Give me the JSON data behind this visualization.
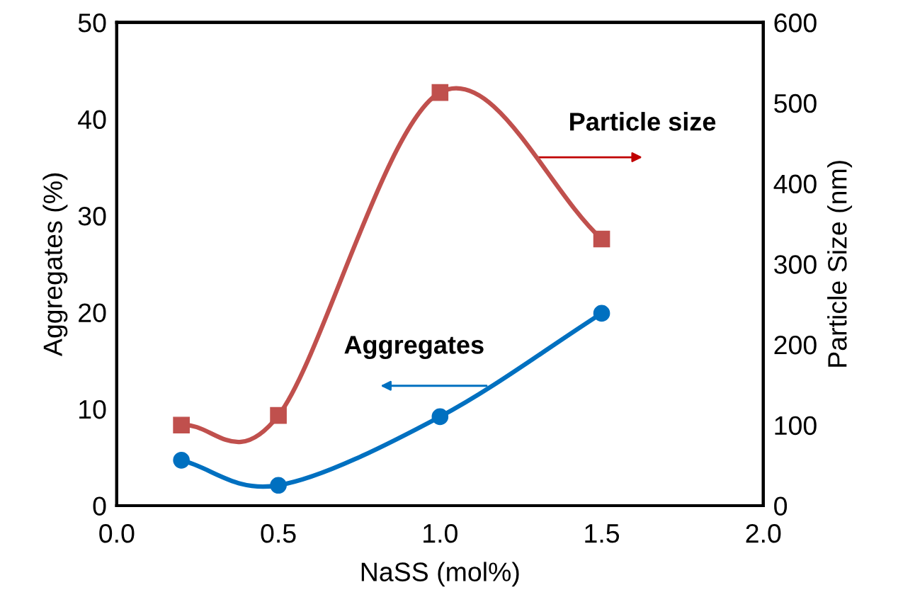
{
  "chart_data": {
    "type": "line",
    "xlabel": "NaSS (mol%)",
    "ylabel": "Aggregates (%)",
    "y2label": "Particle Size (nm)",
    "x": [
      0.2,
      0.5,
      1.0,
      1.5
    ],
    "xlim": [
      0.0,
      2.0
    ],
    "xticks": [
      {
        "value": 0,
        "label": "0.0"
      },
      {
        "value": 0.5,
        "label": "0.5"
      },
      {
        "value": 1,
        "label": "1.0"
      },
      {
        "value": 1.5,
        "label": "1.5"
      },
      {
        "value": 2,
        "label": "2.0"
      }
    ],
    "ylim": [
      0,
      50
    ],
    "yticks": [
      0,
      10,
      20,
      30,
      40,
      50
    ],
    "y2lim": [
      0,
      600
    ],
    "y2ticks": [
      0,
      100,
      200,
      300,
      400,
      500,
      600
    ],
    "grid": false,
    "line_style": "solid",
    "series": [
      {
        "name": "Aggregates",
        "color": "#0070c0",
        "marker": "circle",
        "values": [
          4.7,
          2.1,
          9.2,
          19.9
        ]
      },
      {
        "name": "Particle size",
        "color": "#c0504d",
        "marker": "square",
        "axis": "y2",
        "values": [
          100,
          112,
          513,
          331
        ]
      }
    ]
  }
}
